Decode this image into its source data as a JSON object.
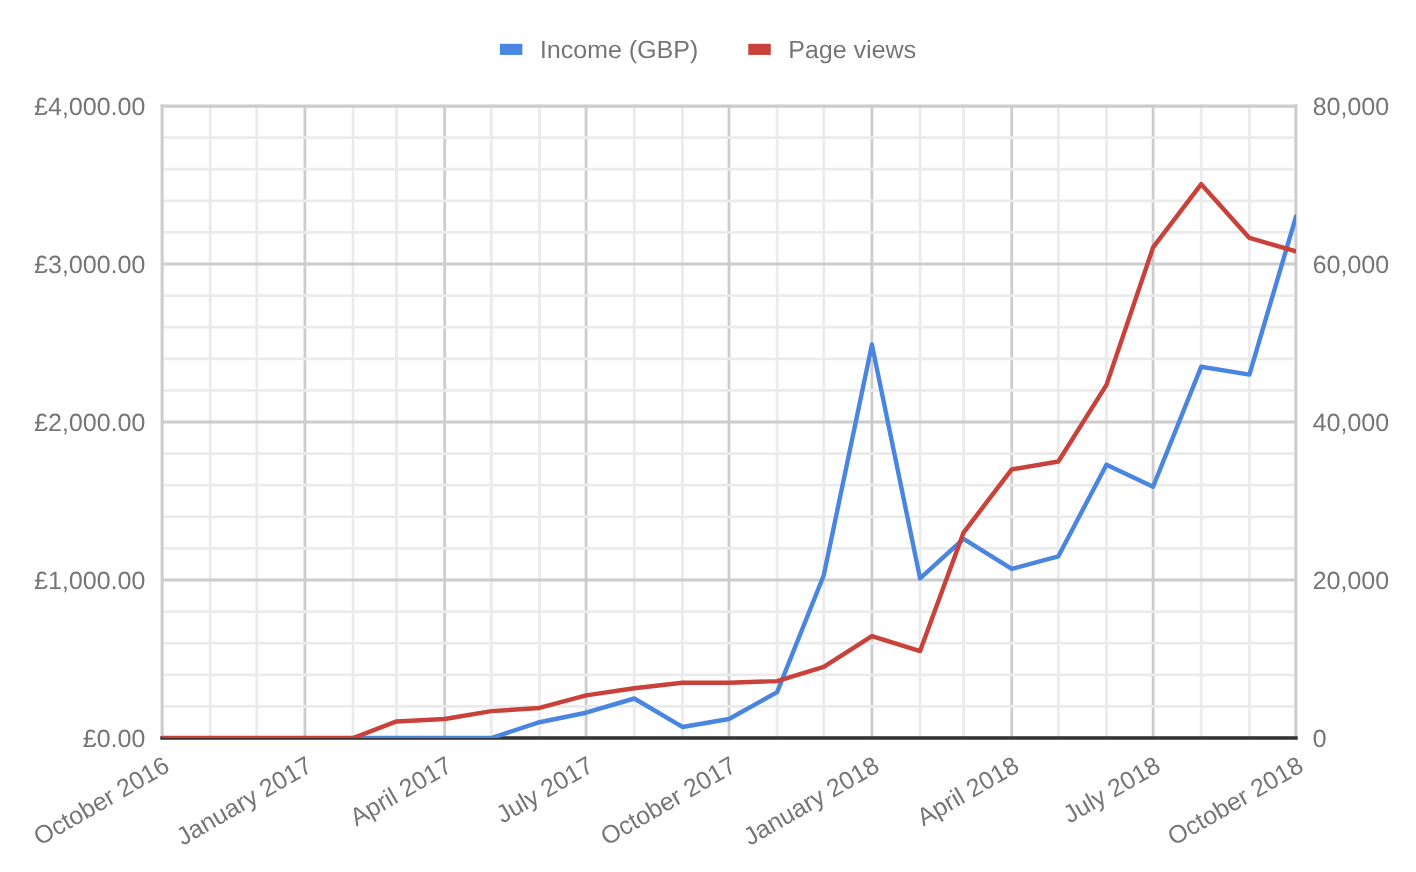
{
  "chart_data": {
    "type": "line",
    "x": [
      "2016-10",
      "2016-11",
      "2016-12",
      "2017-01",
      "2017-02",
      "2017-03",
      "2017-04",
      "2017-05",
      "2017-06",
      "2017-07",
      "2017-08",
      "2017-09",
      "2017-10",
      "2017-11",
      "2017-12",
      "2018-01",
      "2018-02",
      "2018-03",
      "2018-04",
      "2018-05",
      "2018-06",
      "2018-07",
      "2018-08",
      "2018-09",
      "2018-10"
    ],
    "series": [
      {
        "name": "Income (GBP)",
        "color": "#4a86e0",
        "axis": "y",
        "values": [
          null,
          null,
          null,
          null,
          0,
          0,
          0,
          0,
          100,
          160,
          250,
          70,
          120,
          290,
          1030,
          2490,
          1010,
          1260,
          1070,
          1150,
          1730,
          1590,
          2350,
          2300,
          3300
        ]
      },
      {
        "name": "Page views",
        "color": "#c8413a",
        "axis": "y2",
        "values": [
          0,
          0,
          0,
          0,
          0,
          2100,
          2400,
          3400,
          3800,
          5400,
          6300,
          7000,
          7000,
          7200,
          9000,
          12900,
          11000,
          26000,
          34000,
          35000,
          44700,
          62100,
          70100,
          63300,
          61600
        ]
      }
    ],
    "xlim": [
      "2016-10",
      "2018-10"
    ],
    "xticks": [
      {
        "value": "2016-10",
        "label": "October 2016"
      },
      {
        "value": "2016-11",
        "label": null
      },
      {
        "value": "2016-12",
        "label": null
      },
      {
        "value": "2017-01",
        "label": "January 2017"
      },
      {
        "value": "2017-02",
        "label": null
      },
      {
        "value": "2017-03",
        "label": null
      },
      {
        "value": "2017-04",
        "label": "April 2017"
      },
      {
        "value": "2017-05",
        "label": null
      },
      {
        "value": "2017-06",
        "label": null
      },
      {
        "value": "2017-07",
        "label": "July 2017"
      },
      {
        "value": "2017-08",
        "label": null
      },
      {
        "value": "2017-09",
        "label": null
      },
      {
        "value": "2017-10",
        "label": "October 2017"
      },
      {
        "value": "2017-11",
        "label": null
      },
      {
        "value": "2017-12",
        "label": null
      },
      {
        "value": "2018-01",
        "label": "January 2018"
      },
      {
        "value": "2018-02",
        "label": null
      },
      {
        "value": "2018-03",
        "label": null
      },
      {
        "value": "2018-04",
        "label": "April 2018"
      },
      {
        "value": "2018-05",
        "label": null
      },
      {
        "value": "2018-06",
        "label": null
      },
      {
        "value": "2018-07",
        "label": "July 2018"
      },
      {
        "value": "2018-08",
        "label": null
      },
      {
        "value": "2018-09",
        "label": null
      },
      {
        "value": "2018-10",
        "label": "October 2018"
      }
    ],
    "ylim": [
      0,
      4000
    ],
    "yticks": [
      {
        "value": 0,
        "label": "£0.00"
      },
      {
        "value": 200,
        "label": null
      },
      {
        "value": 400,
        "label": null
      },
      {
        "value": 600,
        "label": null
      },
      {
        "value": 800,
        "label": null
      },
      {
        "value": 1000,
        "label": "£1,000.00"
      },
      {
        "value": 1200,
        "label": null
      },
      {
        "value": 1400,
        "label": null
      },
      {
        "value": 1600,
        "label": null
      },
      {
        "value": 1800,
        "label": null
      },
      {
        "value": 2000,
        "label": "£2,000.00"
      },
      {
        "value": 2200,
        "label": null
      },
      {
        "value": 2400,
        "label": null
      },
      {
        "value": 2600,
        "label": null
      },
      {
        "value": 2800,
        "label": null
      },
      {
        "value": 3000,
        "label": "£3,000.00"
      },
      {
        "value": 3200,
        "label": null
      },
      {
        "value": 3400,
        "label": null
      },
      {
        "value": 3600,
        "label": null
      },
      {
        "value": 3800,
        "label": null
      },
      {
        "value": 4000,
        "label": "£4,000.00"
      }
    ],
    "y2lim": [
      0,
      80000
    ],
    "y2ticks": [
      0,
      {
        "value": 20000,
        "label": "20,000"
      },
      {
        "value": 40000,
        "label": "40,000"
      },
      {
        "value": 60000,
        "label": "60,000"
      },
      {
        "value": 80000,
        "label": "80,000"
      }
    ],
    "grid": true,
    "legend": "top"
  }
}
